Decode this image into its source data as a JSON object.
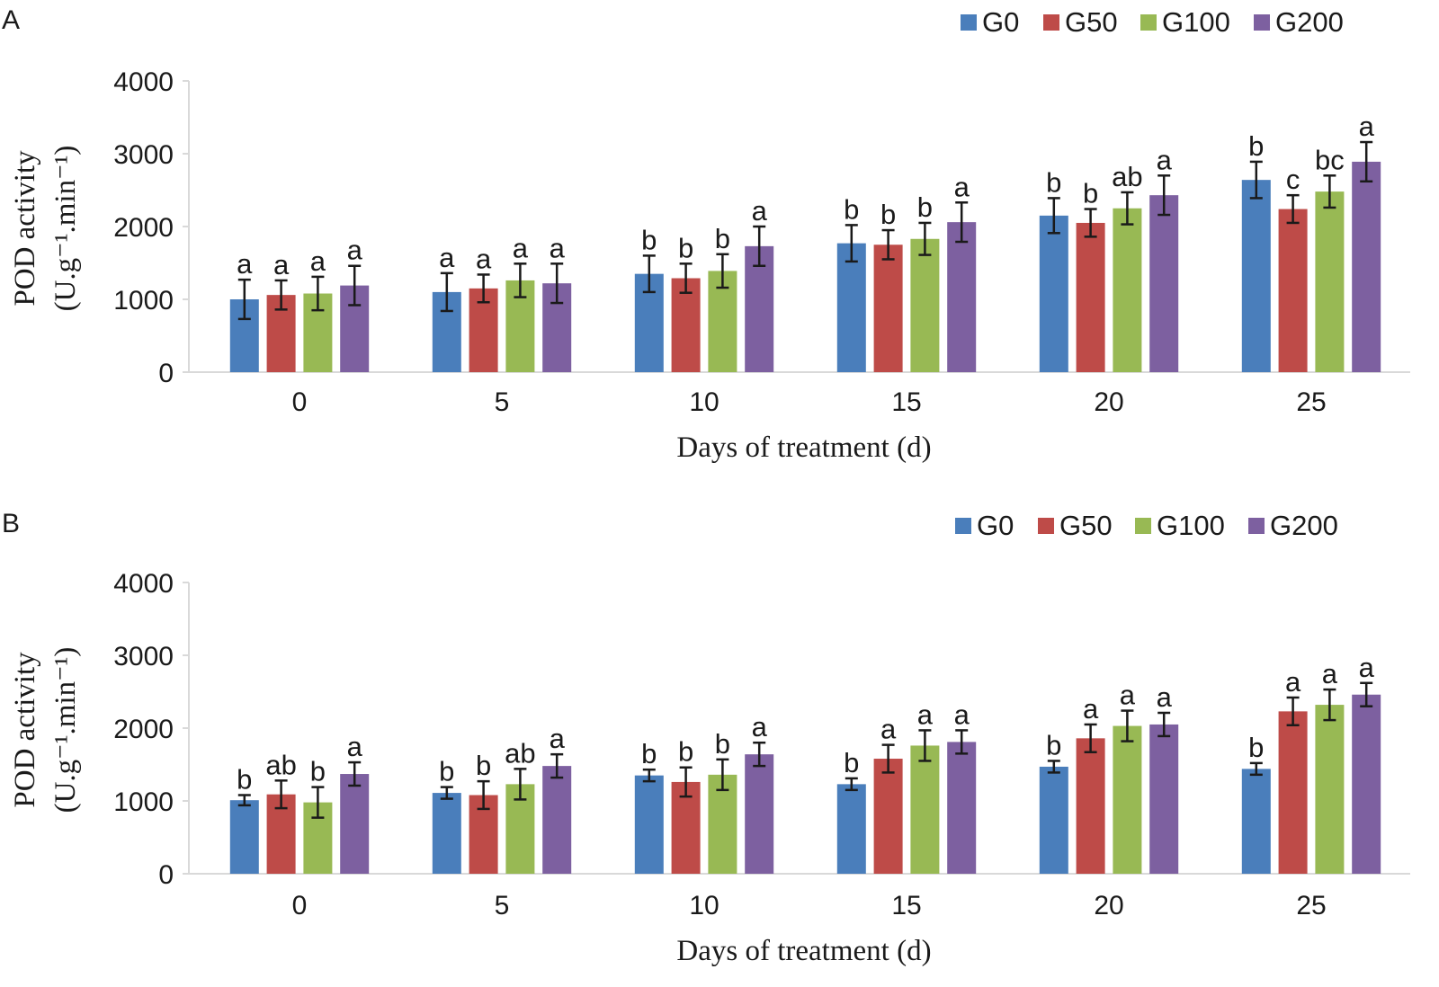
{
  "colors": {
    "G0": "#4a7ebb",
    "G50": "#be4b48",
    "G100": "#98b954",
    "G200": "#7d60a0",
    "axis": "#d9d9d9",
    "error": "#1a1a1a",
    "text": "#1a1a1a"
  },
  "chart_data": [
    {
      "panel_label": "A",
      "type": "bar",
      "xlabel": "Days of treatment (d)",
      "ylabel_line1": "POD activity",
      "ylabel_line2": "(U.g⁻¹.min⁻¹)",
      "ylim": [
        0,
        4000
      ],
      "yticks": [
        "0",
        "1000",
        "2000",
        "3000",
        "4000"
      ],
      "categories": [
        "0",
        "5",
        "10",
        "15",
        "20",
        "25"
      ],
      "legend_position": "top-right",
      "series": [
        {
          "name": "G0",
          "values": [
            1000,
            1100,
            1350,
            1770,
            2150,
            2640
          ],
          "errors": [
            270,
            260,
            250,
            250,
            240,
            250
          ],
          "letters": [
            "a",
            "a",
            "b",
            "b",
            "b",
            "b"
          ]
        },
        {
          "name": "G50",
          "values": [
            1060,
            1150,
            1290,
            1750,
            2050,
            2240
          ],
          "errors": [
            200,
            190,
            200,
            200,
            190,
            190
          ],
          "letters": [
            "a",
            "a",
            "b",
            "b",
            "b",
            "c"
          ]
        },
        {
          "name": "G100",
          "values": [
            1080,
            1260,
            1390,
            1830,
            2250,
            2480
          ],
          "errors": [
            230,
            230,
            230,
            220,
            220,
            220
          ],
          "letters": [
            "a",
            "a",
            "b",
            "b",
            "ab",
            "bc"
          ]
        },
        {
          "name": "G200",
          "values": [
            1190,
            1220,
            1730,
            2060,
            2430,
            2890
          ],
          "errors": [
            270,
            270,
            270,
            270,
            270,
            270
          ],
          "letters": [
            "a",
            "a",
            "a",
            "a",
            "a",
            "a"
          ]
        }
      ]
    },
    {
      "panel_label": "B",
      "type": "bar",
      "xlabel": "Days of treatment (d)",
      "ylabel_line1": "POD activity",
      "ylabel_line2": "(U.g⁻¹.min⁻¹)",
      "ylim": [
        0,
        4000
      ],
      "yticks": [
        "0",
        "1000",
        "2000",
        "3000",
        "4000"
      ],
      "categories": [
        "0",
        "5",
        "10",
        "15",
        "20",
        "25"
      ],
      "legend_position": "top-right",
      "series": [
        {
          "name": "G0",
          "values": [
            1010,
            1110,
            1350,
            1230,
            1470,
            1440
          ],
          "errors": [
            70,
            80,
            80,
            80,
            80,
            80
          ],
          "letters": [
            "b",
            "b",
            "b",
            "b",
            "b",
            "b"
          ]
        },
        {
          "name": "G50",
          "values": [
            1090,
            1080,
            1260,
            1580,
            1860,
            2230
          ],
          "errors": [
            190,
            190,
            200,
            190,
            190,
            190
          ],
          "letters": [
            "ab",
            "b",
            "b",
            "a",
            "a",
            "a"
          ]
        },
        {
          "name": "G100",
          "values": [
            980,
            1230,
            1360,
            1760,
            2030,
            2320
          ],
          "errors": [
            210,
            210,
            210,
            210,
            210,
            210
          ],
          "letters": [
            "b",
            "ab",
            "b",
            "a",
            "a",
            "a"
          ]
        },
        {
          "name": "G200",
          "values": [
            1370,
            1480,
            1640,
            1810,
            2050,
            2460
          ],
          "errors": [
            160,
            160,
            160,
            160,
            160,
            160
          ],
          "letters": [
            "a",
            "a",
            "a",
            "a",
            "a",
            "a"
          ]
        }
      ]
    }
  ]
}
